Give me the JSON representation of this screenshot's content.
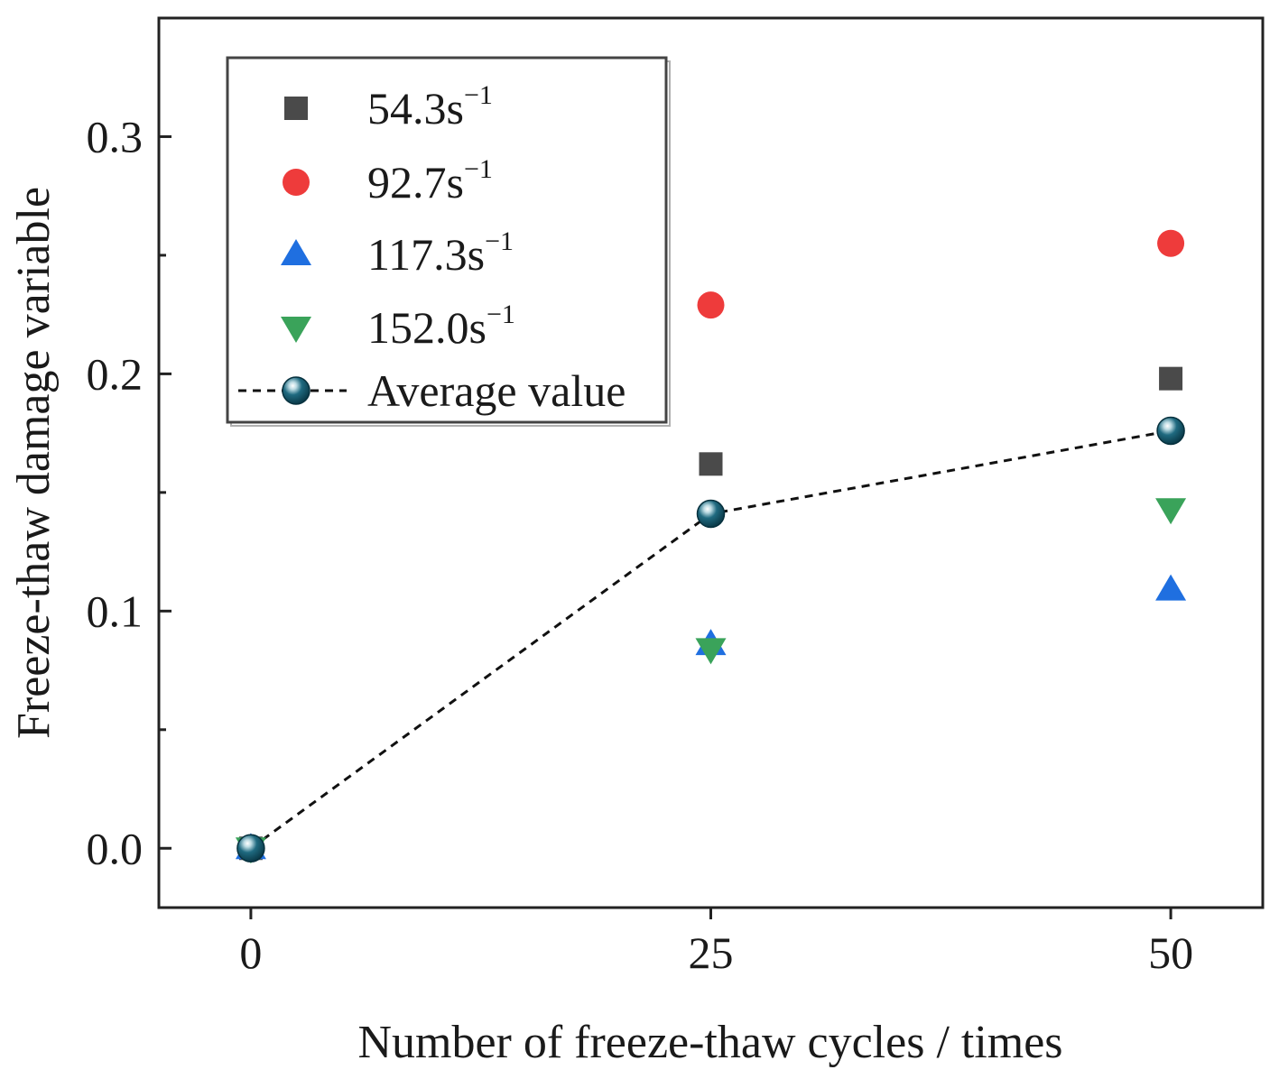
{
  "chart_data": {
    "type": "scatter",
    "xlabel": "Number of freeze-thaw cycles / times",
    "ylabel": "Freeze-thaw damage variable",
    "xlim": [
      -5,
      55
    ],
    "ylim": [
      -0.025,
      0.35
    ],
    "xticks": [
      0,
      25,
      50
    ],
    "xtick_labels": [
      "0",
      "25",
      "50"
    ],
    "yticks": [
      0.0,
      0.1,
      0.2,
      0.3
    ],
    "ytick_labels": [
      "0.0",
      "0.1",
      "0.2",
      "0.3"
    ],
    "y_minor_ticks": [
      0.05,
      0.15,
      0.25
    ],
    "legend_position": "top-left",
    "series": [
      {
        "name": "54.3s",
        "name_sup": "−1",
        "marker": "square",
        "color": "#4a4a4a",
        "x": [
          0,
          25,
          50
        ],
        "y": [
          0.0,
          0.162,
          0.198
        ]
      },
      {
        "name": "92.7s",
        "name_sup": "−1",
        "marker": "circle",
        "color": "#ee3b3b",
        "x": [
          0,
          25,
          50
        ],
        "y": [
          0.0,
          0.229,
          0.255
        ]
      },
      {
        "name": "117.3s",
        "name_sup": "−1",
        "marker": "triangle-up",
        "color": "#1f6fe0",
        "x": [
          0,
          25,
          50
        ],
        "y": [
          0.0,
          0.086,
          0.109
        ]
      },
      {
        "name": "152.0s",
        "name_sup": "−1",
        "marker": "triangle-down",
        "color": "#3aa35a",
        "x": [
          0,
          25,
          50
        ],
        "y": [
          0.0,
          0.084,
          0.143
        ]
      },
      {
        "name": "Average value",
        "name_sup": "",
        "marker": "sphere",
        "color": "#0c4a5c",
        "line": "dashed",
        "x": [
          0,
          25,
          50
        ],
        "y": [
          0.0,
          0.141,
          0.176
        ]
      }
    ]
  }
}
